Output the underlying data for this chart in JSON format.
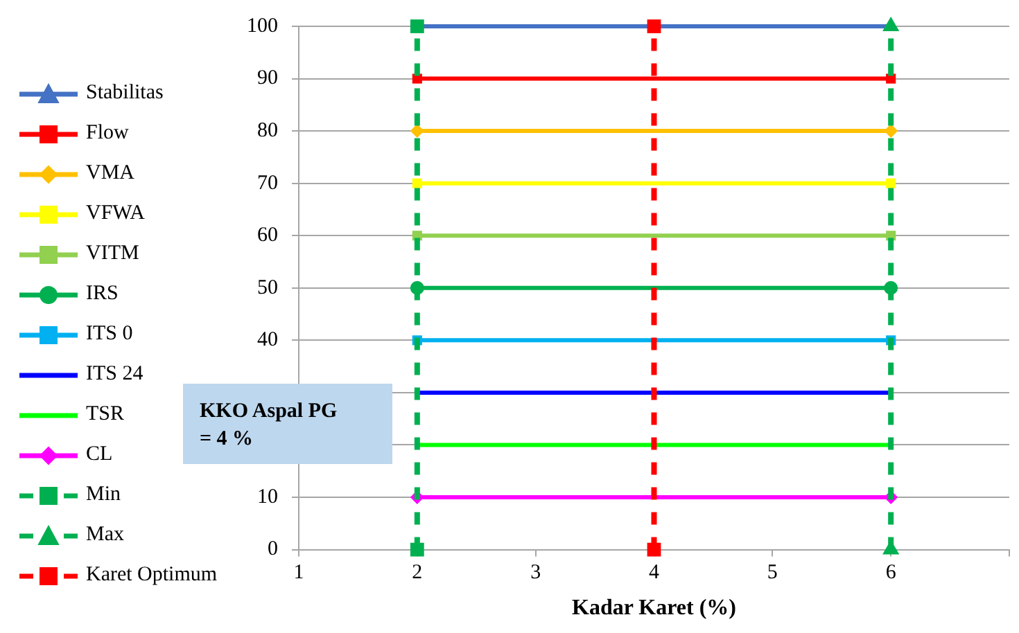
{
  "chart_data": {
    "type": "line",
    "xlabel": "Kadar Karet (%)",
    "xlim": [
      1,
      7
    ],
    "xticks": [
      1,
      2,
      3,
      4,
      5,
      6,
      {
        "value": 7,
        "label": null
      }
    ],
    "ylim": [
      0,
      100
    ],
    "yticks": [
      0,
      10,
      {
        "value": 20,
        "label": null
      },
      {
        "value": 30,
        "label": null
      },
      40,
      50,
      60,
      70,
      80,
      90,
      100
    ],
    "grid": "y",
    "legend": "left",
    "line_style": "solid",
    "annotations": [
      "KKO Aspal PG\n= 4 %"
    ],
    "series": [
      {
        "name": "Stabilitas",
        "color": "#4472c4",
        "x": [
          2,
          6
        ],
        "values": [
          100,
          100
        ],
        "marker": "triangle"
      },
      {
        "name": "Flow",
        "color": "#ff0000",
        "x": [
          2,
          6
        ],
        "values": [
          90,
          90
        ],
        "marker": "square"
      },
      {
        "name": "VMA",
        "color": "#ffc000",
        "x": [
          2,
          6
        ],
        "values": [
          80,
          80
        ],
        "marker": "diamond"
      },
      {
        "name": "VFWA",
        "color": "#ffff00",
        "x": [
          2,
          6
        ],
        "values": [
          70,
          70
        ],
        "marker": "square"
      },
      {
        "name": "VITM",
        "color": "#92d050",
        "x": [
          2,
          6
        ],
        "values": [
          60,
          60
        ],
        "marker": "square"
      },
      {
        "name": "IRS",
        "color": "#00b050",
        "x": [
          2,
          6
        ],
        "values": [
          50,
          50
        ],
        "marker": "circle"
      },
      {
        "name": "ITS 0",
        "color": "#00b0f0",
        "x": [
          2,
          6
        ],
        "values": [
          40,
          40
        ],
        "marker": "square"
      },
      {
        "name": "ITS 24",
        "color": "#0000ff",
        "x": [
          2,
          6
        ],
        "values": [
          30,
          30
        ],
        "marker": "none"
      },
      {
        "name": "TSR",
        "color": "#00ff00",
        "x": [
          2,
          6
        ],
        "values": [
          20,
          20
        ],
        "marker": "none"
      },
      {
        "name": "CL",
        "color": "#ff00ff",
        "x": [
          2,
          6
        ],
        "values": [
          10,
          10
        ],
        "marker": "diamond"
      },
      {
        "name": "Min",
        "color": "#00b050",
        "x": [
          2,
          2
        ],
        "values": [
          0,
          100
        ],
        "marker": "square",
        "line_style": "dashed"
      },
      {
        "name": "Max",
        "color": "#00b050",
        "x": [
          6,
          6
        ],
        "values": [
          0,
          100
        ],
        "marker": "triangle",
        "line_style": "dashed"
      },
      {
        "name": "Karet Optimum",
        "color": "#ff0000",
        "x": [
          4,
          4
        ],
        "values": [
          0,
          100
        ],
        "marker": "square",
        "line_style": "dashed"
      }
    ]
  }
}
